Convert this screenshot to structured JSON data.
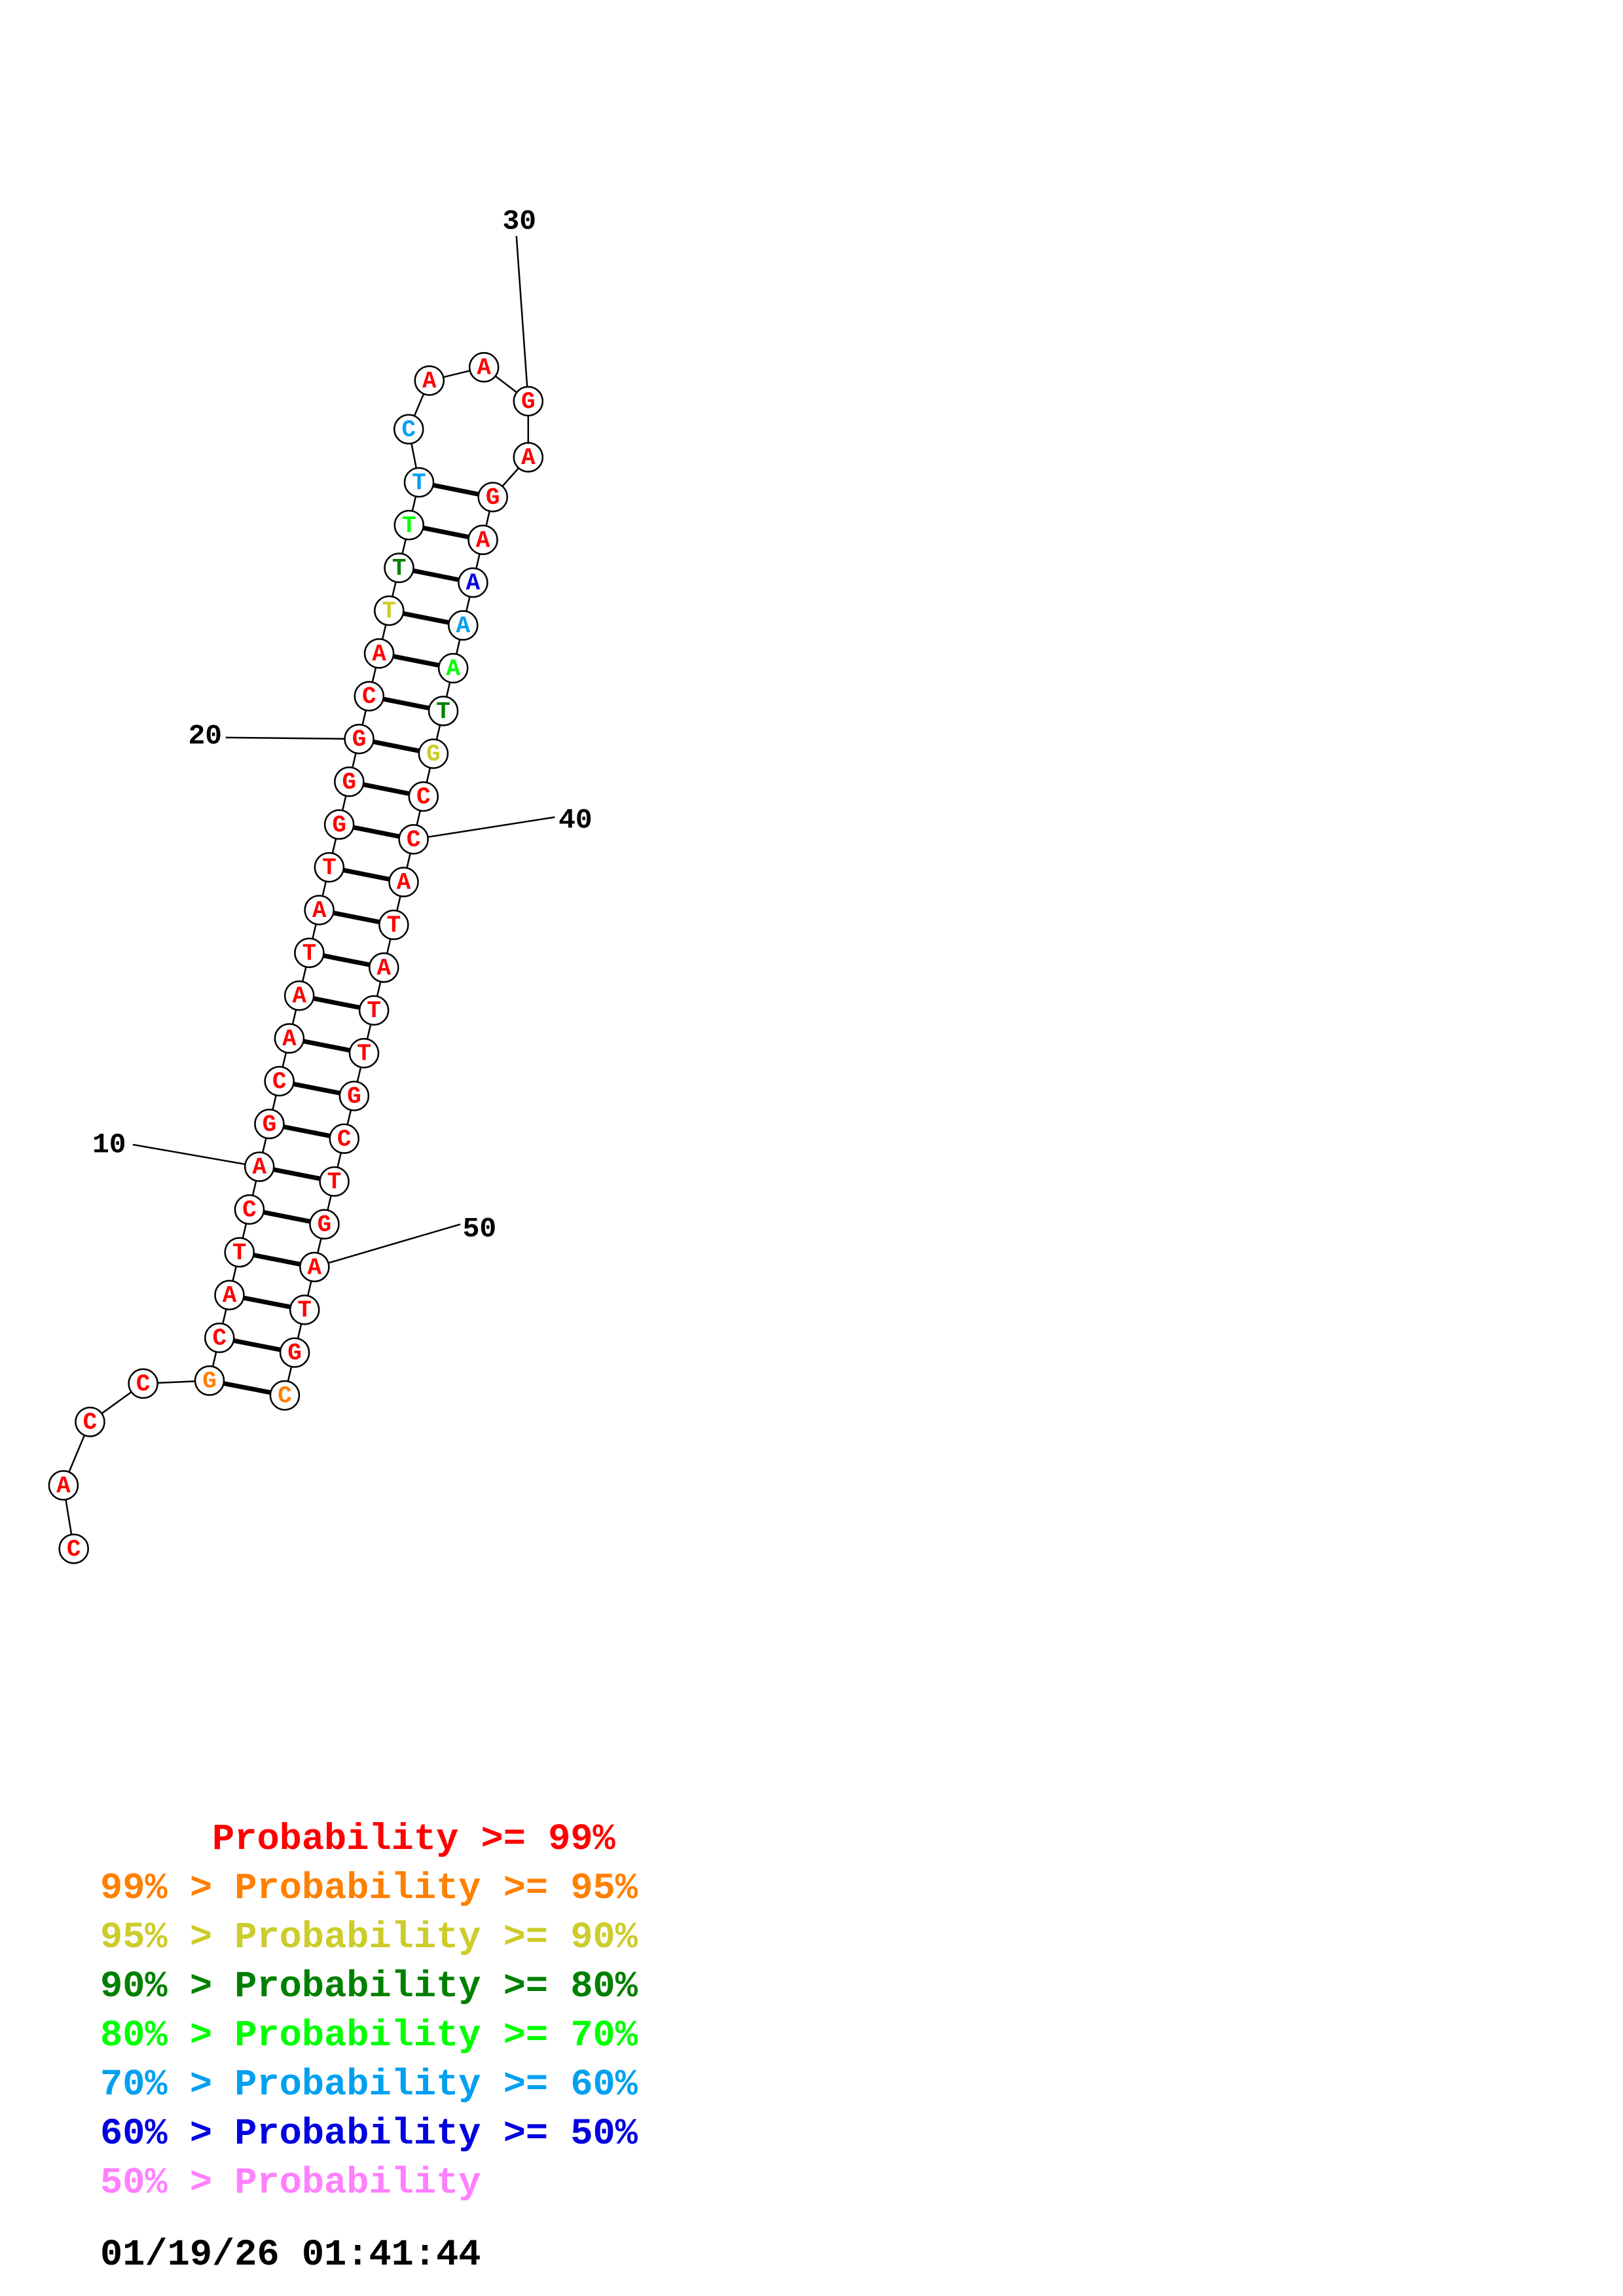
{
  "colors": {
    "p99": "#ff0000",
    "p95": "#ff8000",
    "p90": "#cccc2a",
    "p80": "#008000",
    "p70": "#00ff00",
    "p60": "#00a0f0",
    "p50": "#0000e0",
    "plow": "#ff80ff"
  },
  "sequence": [
    "C",
    "A",
    "C",
    "C",
    "G",
    "C",
    "A",
    "T",
    "C",
    "A",
    "G",
    "C",
    "A",
    "A",
    "T",
    "A",
    "T",
    "G",
    "G",
    "G",
    "C",
    "A",
    "T",
    "T",
    "T",
    "T",
    "C",
    "A",
    "A",
    "G",
    "A",
    "G",
    "A",
    "A",
    "A",
    "A",
    "T",
    "G",
    "C",
    "C",
    "A",
    "T",
    "A",
    "T",
    "T",
    "G",
    "C",
    "T",
    "G",
    "A",
    "T",
    "G",
    "C"
  ],
  "color_class": [
    "p99",
    "p99",
    "p99",
    "p99",
    "p95",
    "p99",
    "p99",
    "p99",
    "p99",
    "p99",
    "p99",
    "p99",
    "p99",
    "p99",
    "p99",
    "p99",
    "p99",
    "p99",
    "p99",
    "p99",
    "p99",
    "p99",
    "p90",
    "p80",
    "p70",
    "p60",
    "p60",
    "p99",
    "p99",
    "p99",
    "p99",
    "p99",
    "p99",
    "p50",
    "p60",
    "p70",
    "p80",
    "p90",
    "p99",
    "p99",
    "p99",
    "p99",
    "p99",
    "p99",
    "p99",
    "p99",
    "p99",
    "p99",
    "p99",
    "p99",
    "p99",
    "p99",
    "p95"
  ],
  "pairs": [
    [
      5,
      53
    ],
    [
      6,
      52
    ],
    [
      7,
      51
    ],
    [
      8,
      50
    ],
    [
      9,
      49
    ],
    [
      10,
      48
    ],
    [
      11,
      47
    ],
    [
      12,
      46
    ],
    [
      13,
      45
    ],
    [
      14,
      44
    ],
    [
      15,
      43
    ],
    [
      16,
      42
    ],
    [
      17,
      41
    ],
    [
      18,
      40
    ],
    [
      19,
      39
    ],
    [
      20,
      38
    ],
    [
      21,
      37
    ],
    [
      22,
      36
    ],
    [
      23,
      35
    ],
    [
      24,
      34
    ],
    [
      25,
      33
    ],
    [
      26,
      32
    ]
  ],
  "tick_labels": [
    {
      "index": 10,
      "label": "10"
    },
    {
      "index": 20,
      "label": "20"
    },
    {
      "index": 30,
      "label": "30"
    },
    {
      "index": 40,
      "label": "40"
    },
    {
      "index": 50,
      "label": "50"
    }
  ],
  "legend": [
    {
      "text": "     Probability >= 99%",
      "color": "p99"
    },
    {
      "text": "99% > Probability >= 95%",
      "color": "p95"
    },
    {
      "text": "95% > Probability >= 90%",
      "color": "p90"
    },
    {
      "text": "90% > Probability >= 80%",
      "color": "p80"
    },
    {
      "text": "80% > Probability >= 70%",
      "color": "p70"
    },
    {
      "text": "70% > Probability >= 60%",
      "color": "p60"
    },
    {
      "text": "60% > Probability >= 50%",
      "color": "p50"
    },
    {
      "text": "50% > Probability",
      "color": "plow"
    }
  ],
  "timestamp": "01/19/26 01:41:44"
}
